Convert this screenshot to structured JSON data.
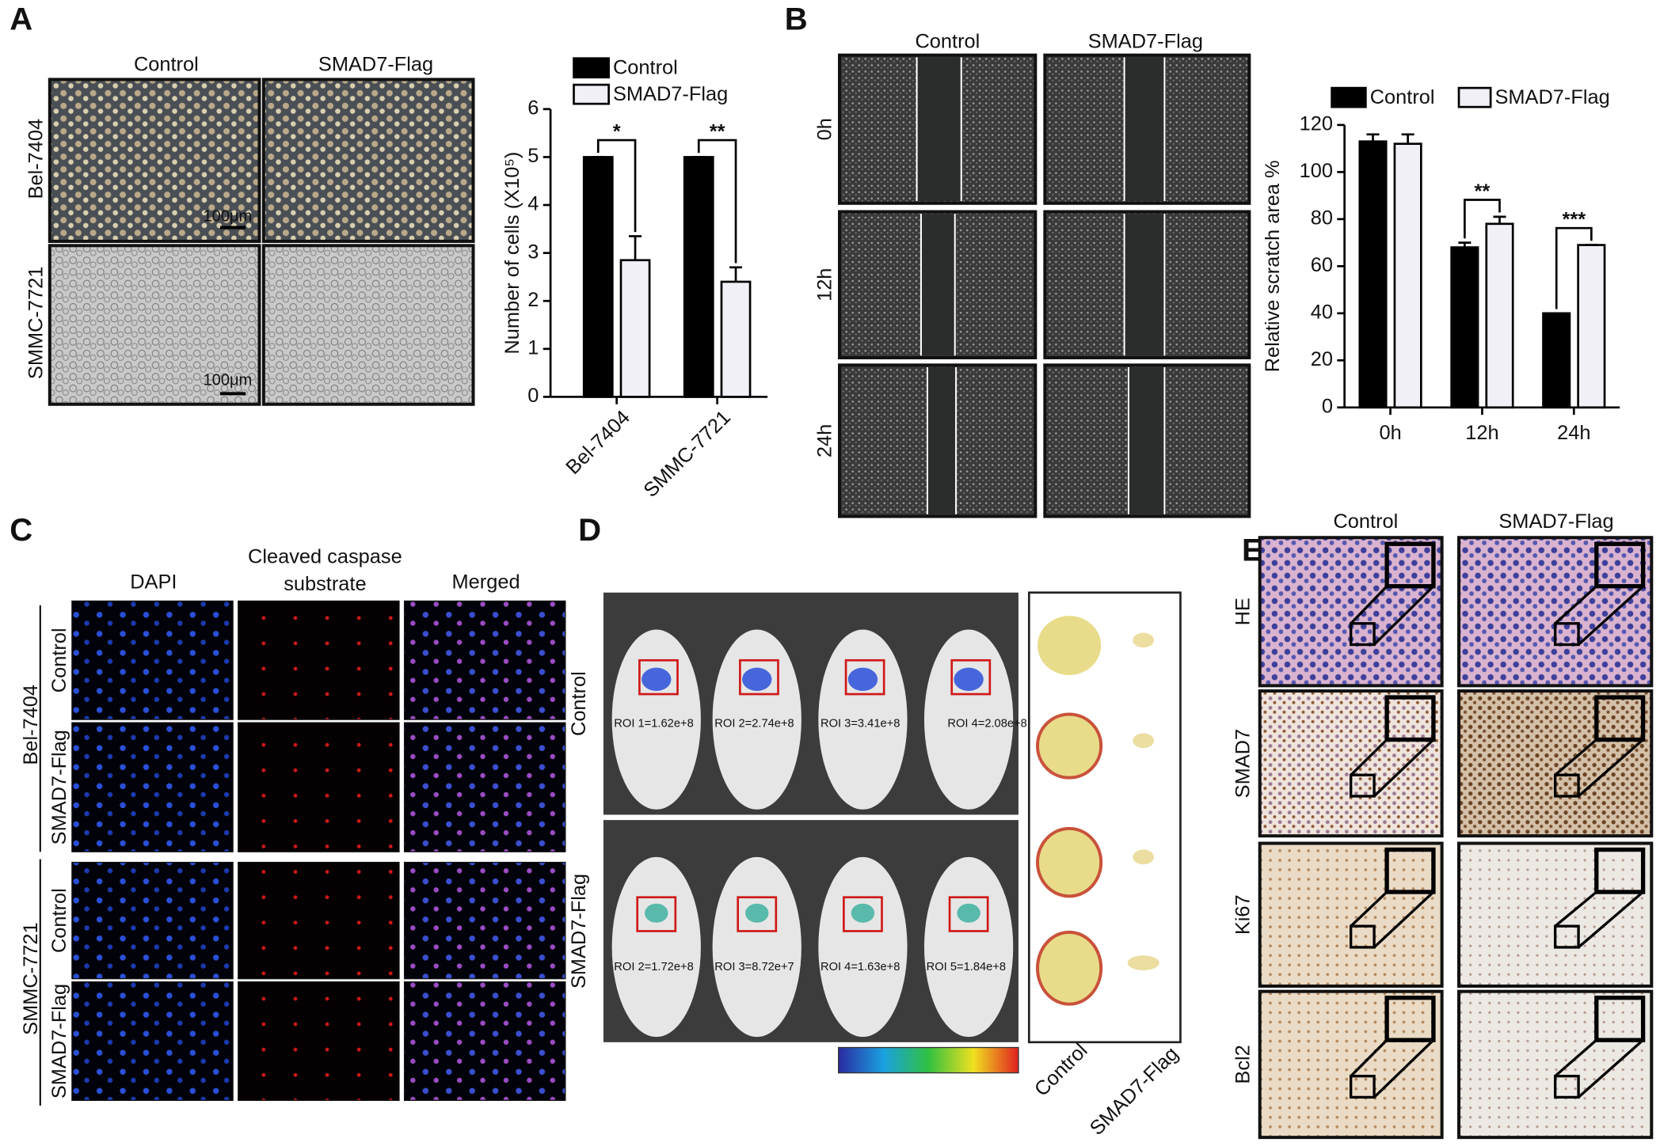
{
  "chart_data": [
    {
      "type": "bar",
      "y_label": "Number of cells (X10⁵)",
      "categories": [
        "Bel-7404",
        "SMMC-7721"
      ],
      "series": [
        {
          "name": "Control",
          "color": "#000000",
          "values": [
            5.0,
            5.0
          ],
          "errors": [
            0,
            0
          ]
        },
        {
          "name": "SMAD7-Flag",
          "color": "#f0f0f6",
          "values": [
            2.85,
            2.4
          ],
          "errors": [
            0.5,
            0.3
          ]
        }
      ],
      "annotations": [
        {
          "text": "*",
          "category": "Bel-7404"
        },
        {
          "text": "**",
          "category": "SMMC-7721"
        }
      ],
      "ylim": [
        0,
        6
      ],
      "yticks": [
        0,
        1,
        2,
        3,
        4,
        5,
        6
      ]
    },
    {
      "type": "bar",
      "y_label": "Relative scratch area %",
      "categories": [
        "0h",
        "12h",
        "24h"
      ],
      "series": [
        {
          "name": "Control",
          "color": "#000000",
          "values": [
            113,
            68,
            40
          ],
          "errors": [
            3,
            2,
            0
          ]
        },
        {
          "name": "SMAD7-Flag",
          "color": "#f0f0f6",
          "values": [
            112,
            78,
            69
          ],
          "errors": [
            4,
            3,
            0
          ]
        }
      ],
      "annotations": [
        {
          "text": "**",
          "category": "12h"
        },
        {
          "text": "***",
          "category": "24h"
        }
      ],
      "ylim": [
        0,
        120
      ],
      "yticks": [
        0,
        20,
        40,
        60,
        80,
        100,
        120
      ]
    }
  ],
  "panels": {
    "A": {
      "label": "A",
      "columns": [
        "Control",
        "SMAD7-Flag"
      ],
      "rows": [
        "Bel-7404",
        "SMMC-7721"
      ],
      "scale_bars": [
        "100μm",
        "100μm"
      ]
    },
    "B": {
      "label": "B",
      "columns": [
        "Control",
        "SMAD7-Flag"
      ],
      "rows": [
        "0h",
        "12h",
        "24h"
      ]
    },
    "C": {
      "label": "C",
      "columns": [
        "DAPI",
        "Cleaved caspase",
        "substrate",
        "Merged"
      ],
      "groups": [
        "Bel-7404",
        "SMMC-7721"
      ],
      "rows": [
        "Control",
        "SMAD7-Flag",
        "Control",
        "SMAD7-Flag"
      ]
    },
    "D": {
      "label": "D",
      "rows": [
        "Control",
        "SMAD7-Flag"
      ],
      "roi_control": [
        "ROI 1=1.62e+8",
        "ROI 2=2.74e+8",
        "ROI 3=3.41e+8",
        "ROI 4=2.08e+8"
      ],
      "roi_smad7": [
        "ROI 2=1.72e+8",
        "ROI 3=8.72e+7",
        "ROI 4=1.63e+8",
        "ROI 5=1.84e+8"
      ],
      "tumor_labels": [
        "Control",
        "SMAD7-Flag"
      ]
    },
    "E": {
      "label": "E",
      "columns": [
        "Control",
        "SMAD7-Flag"
      ],
      "rows": [
        "HE",
        "SMAD7",
        "Ki67",
        "Bcl2"
      ]
    }
  }
}
